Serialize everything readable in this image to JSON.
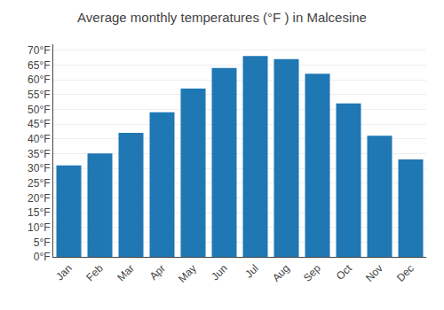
{
  "chart_data": {
    "type": "bar",
    "title": "Average monthly temperatures (°F ) in Malcesine",
    "categories": [
      "Jan",
      "Feb",
      "Mar",
      "Apr",
      "May",
      "Jun",
      "Jul",
      "Aug",
      "Sep",
      "Oct",
      "Nov",
      "Dec"
    ],
    "values": [
      31,
      35,
      42,
      49,
      57,
      64,
      68,
      67,
      62,
      52,
      41,
      33
    ],
    "ylim": [
      0,
      72
    ],
    "yticks": [
      {
        "value": 0,
        "label": "0°F"
      },
      {
        "value": 5,
        "label": "5°F"
      },
      {
        "value": 10,
        "label": "10°F"
      },
      {
        "value": 15,
        "label": "15°F"
      },
      {
        "value": 20,
        "label": "20°F"
      },
      {
        "value": 25,
        "label": "25°F"
      },
      {
        "value": 30,
        "label": "30°F"
      },
      {
        "value": 35,
        "label": "35°F"
      },
      {
        "value": 40,
        "label": "40°F"
      },
      {
        "value": 45,
        "label": "45°F"
      },
      {
        "value": 50,
        "label": "50°F"
      },
      {
        "value": 55,
        "label": "55°F"
      },
      {
        "value": 60,
        "label": "60°F"
      },
      {
        "value": 65,
        "label": "65°F"
      },
      {
        "value": 70,
        "label": "70°F"
      }
    ],
    "grid": true
  }
}
